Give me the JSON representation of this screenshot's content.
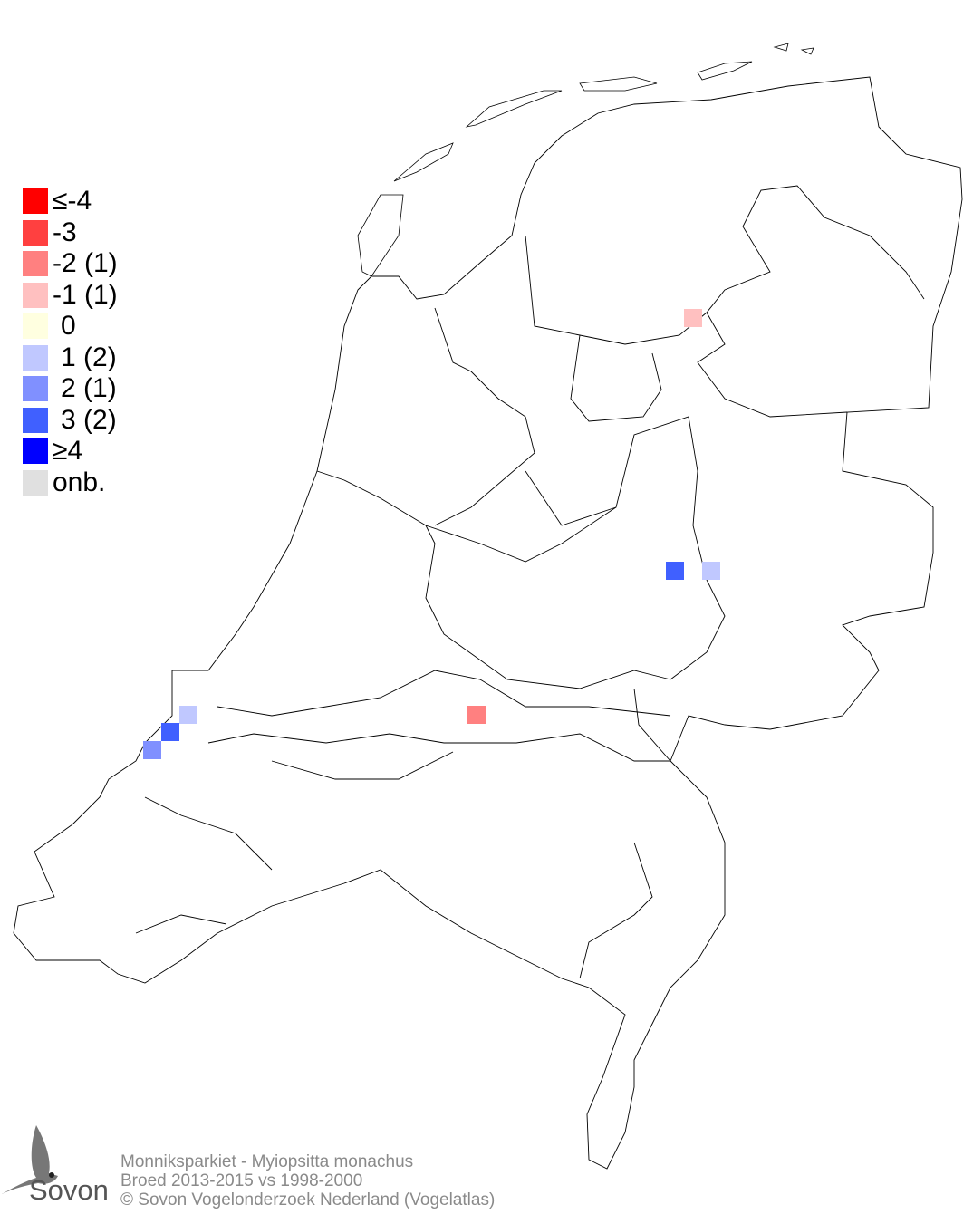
{
  "legend": [
    {
      "label": "≤-4",
      "color": "#ff0000"
    },
    {
      "label": "-3",
      "color": "#ff4040"
    },
    {
      "label": "-2 (1)",
      "color": "#ff8080"
    },
    {
      "label": "-1 (1)",
      "color": "#ffc0c0"
    },
    {
      "label": "0",
      "color": "#ffffe0"
    },
    {
      "label": "1 (2)",
      "color": "#c0c8ff"
    },
    {
      "label": "2 (1)",
      "color": "#8090ff"
    },
    {
      "label": "3 (2)",
      "color": "#4060ff"
    },
    {
      "label": "≥4",
      "color": "#0000ff"
    },
    {
      "label": "onb.",
      "color": "#e0e0e0"
    }
  ],
  "cells": [
    {
      "value": -1
    },
    {
      "value": 3
    },
    {
      "value": 1
    },
    {
      "value": -2
    },
    {
      "value": 1
    },
    {
      "value": 3
    },
    {
      "value": 2
    }
  ],
  "footer": {
    "line1": "Monniksparkiet - Myiopsitta monachus",
    "line2": "Broed 2013-2015 vs 1998-2000",
    "line3": "© Sovon Vogelonderzoek Nederland (Vogelatlas)"
  },
  "logo": {
    "text": "Sovon"
  }
}
